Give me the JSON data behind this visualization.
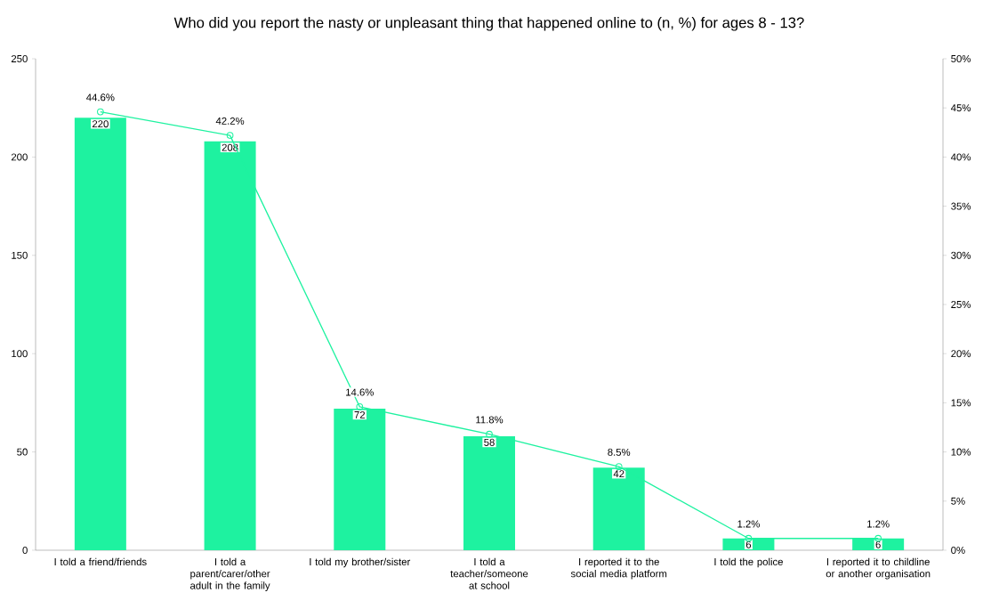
{
  "chart_data": {
    "type": "bar",
    "title": "Who did you report the nasty or unpleasant thing that happened online to (n, %) for ages 8 - 13?",
    "categories": [
      "I told a friend/friends",
      "I told a parent/carer/other adult in the family",
      "I told my brother/sister",
      "I told a teacher/someone at school",
      "I reported it to the social media platform",
      "I told the police",
      "I reported it to childline or another organisation"
    ],
    "series": [
      {
        "color": "#1ef2a0",
        "values": [
          220,
          208,
          72,
          58,
          42,
          6,
          6
        ],
        "value_labels": [
          "220",
          "208",
          "72",
          "58",
          "42",
          "6",
          "6"
        ]
      },
      {
        "type": "line",
        "axis": "y2",
        "color": "#1ef2a0",
        "marker": "circle",
        "values": [
          44.6,
          42.2,
          14.6,
          11.8,
          8.5,
          1.2,
          1.2
        ],
        "value_labels": [
          "44.6%",
          "42.2%",
          "14.6%",
          "11.8%",
          "8.5%",
          "1.2%",
          "1.2%"
        ]
      }
    ],
    "ylim": [
      0,
      250
    ],
    "yticks": [
      0,
      50,
      100,
      150,
      200,
      250
    ],
    "y2lim": [
      0,
      50
    ],
    "y2ticks": [
      {
        "value": 0,
        "label": "0%"
      },
      {
        "value": 5,
        "label": "5%"
      },
      {
        "value": 10,
        "label": "10%"
      },
      {
        "value": 15,
        "label": "15%"
      },
      {
        "value": 20,
        "label": "20%"
      },
      {
        "value": 25,
        "label": "25%"
      },
      {
        "value": 30,
        "label": "30%"
      },
      {
        "value": 35,
        "label": "35%"
      },
      {
        "value": 40,
        "label": "40%"
      },
      {
        "value": 45,
        "label": "45%"
      },
      {
        "value": 50,
        "label": "50%"
      }
    ]
  }
}
